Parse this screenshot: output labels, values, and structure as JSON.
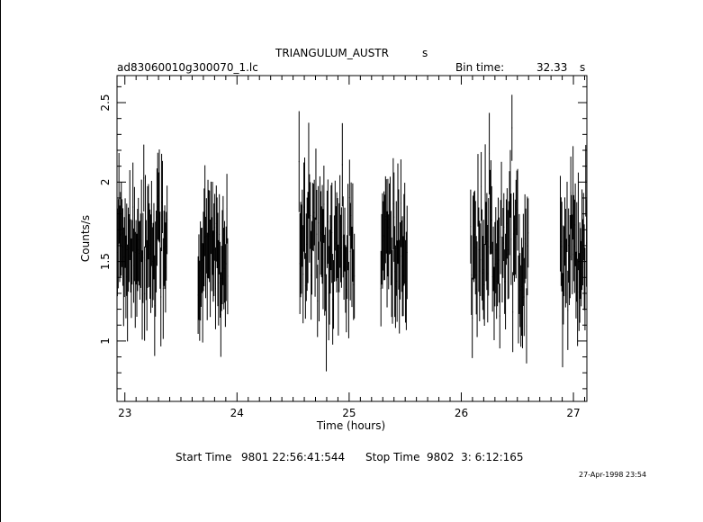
{
  "header": {
    "title": "TRIANGULUM_AUSTR",
    "title_suffix": "s",
    "filename": "ad83060010g300070_1.lc",
    "bin_time_label": "Bin time:",
    "bin_time_value": "32.33",
    "bin_time_unit": "s"
  },
  "footer": {
    "start_label": "Start Time",
    "start_value": "9801 22:56:41:544",
    "stop_label": "Stop Time",
    "stop_value": "9802  3: 6:12:165",
    "date_stamp": "27-Apr-1998 23:54"
  },
  "chart_data": {
    "type": "scatter",
    "title": "TRIANGULUM_AUSTR",
    "xlabel": "Time (hours)",
    "ylabel": "Counts/s",
    "xlim": [
      22.93,
      27.12
    ],
    "ylim": [
      0.62,
      2.67
    ],
    "xticks": [
      23,
      24,
      25,
      26,
      27
    ],
    "xtick_labels": [
      "23",
      "24",
      "25",
      "26",
      "27"
    ],
    "yticks": [
      1,
      1.5,
      2,
      2.5
    ],
    "ytick_labels": [
      "1",
      "1.5",
      "2",
      "2.5"
    ],
    "error_bars": true,
    "segments": [
      {
        "x_start": 22.93,
        "x_end": 23.38,
        "mean": 1.62,
        "points": 65
      },
      {
        "x_start": 23.65,
        "x_end": 23.92,
        "mean": 1.52,
        "points": 40
      },
      {
        "x_start": 24.55,
        "x_end": 25.05,
        "mean": 1.6,
        "points": 70
      },
      {
        "x_start": 25.28,
        "x_end": 25.52,
        "mean": 1.56,
        "points": 35
      },
      {
        "x_start": 26.08,
        "x_end": 26.6,
        "mean": 1.58,
        "points": 72
      },
      {
        "x_start": 26.88,
        "x_end": 27.12,
        "mean": 1.6,
        "points": 36
      }
    ]
  }
}
